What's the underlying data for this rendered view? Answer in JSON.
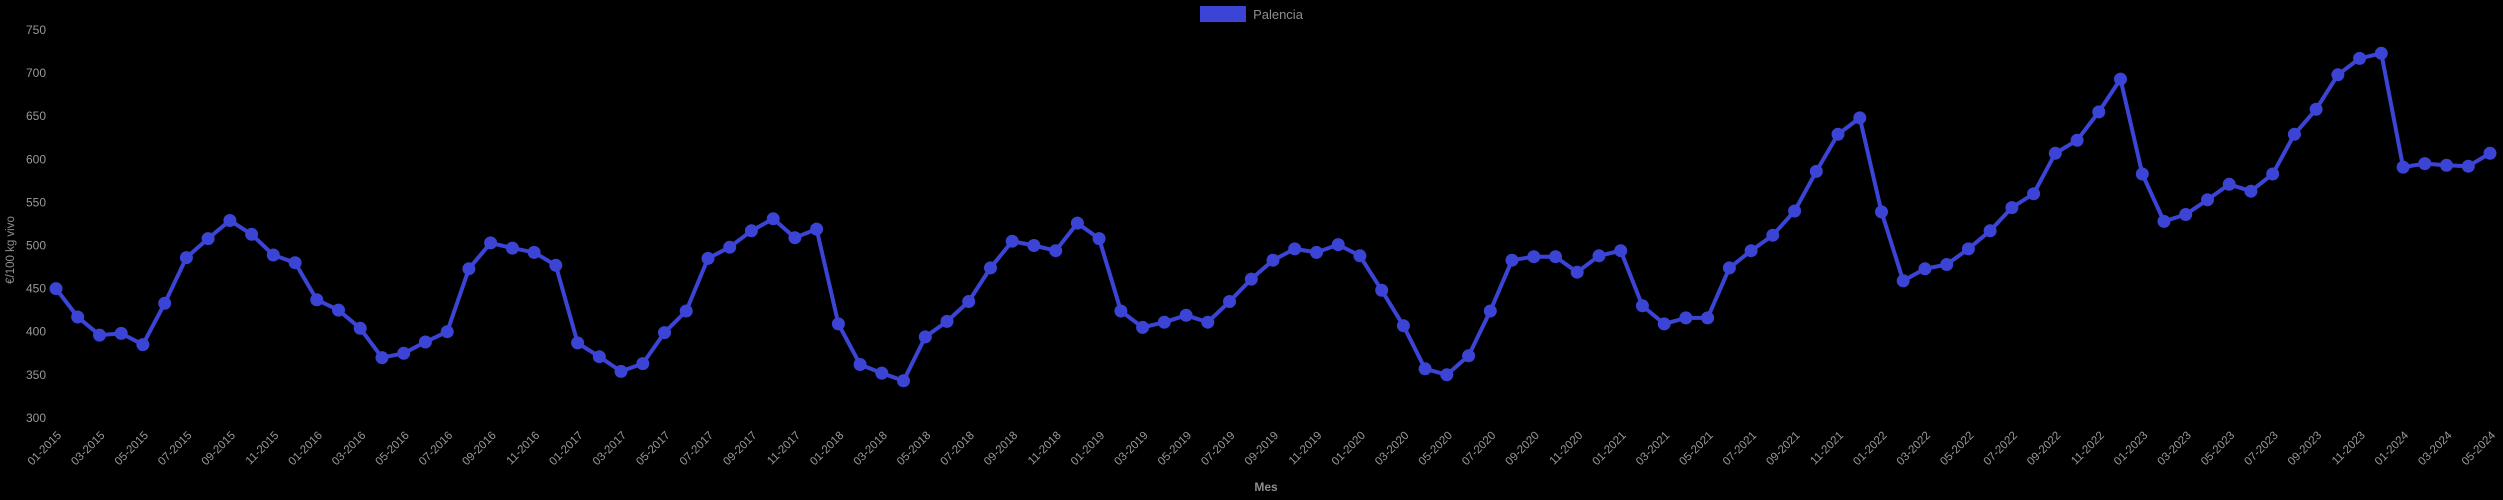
{
  "page": {
    "background": "#000000"
  },
  "legend": {
    "items": [
      {
        "label": "Palencia",
        "color": "#3c44d6"
      }
    ]
  },
  "chart_data": {
    "type": "line",
    "title": "",
    "xlabel": "Mes",
    "ylabel": "€/100 kg vivo",
    "ylim": [
      300,
      750
    ],
    "yticks": [
      300,
      350,
      400,
      450,
      500,
      550,
      600,
      650,
      700,
      750
    ],
    "grid": false,
    "legend_position": "top-center",
    "x_tick_every": 2,
    "x": [
      "01-2015",
      "02-2015",
      "03-2015",
      "04-2015",
      "05-2015",
      "06-2015",
      "07-2015",
      "08-2015",
      "09-2015",
      "10-2015",
      "11-2015",
      "12-2015",
      "01-2016",
      "02-2016",
      "03-2016",
      "04-2016",
      "05-2016",
      "06-2016",
      "07-2016",
      "08-2016",
      "09-2016",
      "10-2016",
      "11-2016",
      "12-2016",
      "01-2017",
      "02-2017",
      "03-2017",
      "04-2017",
      "05-2017",
      "06-2017",
      "07-2017",
      "08-2017",
      "09-2017",
      "10-2017",
      "11-2017",
      "12-2017",
      "01-2018",
      "02-2018",
      "03-2018",
      "04-2018",
      "05-2018",
      "06-2018",
      "07-2018",
      "08-2018",
      "09-2018",
      "10-2018",
      "11-2018",
      "12-2018",
      "01-2019",
      "02-2019",
      "03-2019",
      "04-2019",
      "05-2019",
      "06-2019",
      "07-2019",
      "08-2019",
      "09-2019",
      "10-2019",
      "11-2019",
      "12-2019",
      "01-2020",
      "02-2020",
      "03-2020",
      "04-2020",
      "05-2020",
      "06-2020",
      "07-2020",
      "08-2020",
      "09-2020",
      "10-2020",
      "11-2020",
      "12-2020",
      "01-2021",
      "02-2021",
      "03-2021",
      "04-2021",
      "05-2021",
      "06-2021",
      "07-2021",
      "08-2021",
      "09-2021",
      "10-2021",
      "11-2021",
      "12-2021",
      "01-2022",
      "02-2022",
      "03-2022",
      "04-2022",
      "05-2022",
      "06-2022",
      "07-2022",
      "08-2022",
      "09-2022",
      "10-2022",
      "11-2022",
      "12-2022",
      "01-2023",
      "02-2023",
      "03-2023",
      "04-2023",
      "05-2023",
      "06-2023",
      "07-2023",
      "08-2023",
      "09-2023",
      "10-2023",
      "11-2023",
      "12-2023",
      "01-2024",
      "02-2024",
      "03-2024",
      "04-2024",
      "05-2024"
    ],
    "series": [
      {
        "name": "Palencia",
        "color": "#3c44d6",
        "point_radius": 6.5,
        "line_width": 4,
        "values": [
          450,
          417,
          396,
          398,
          385,
          433,
          486,
          508,
          529,
          513,
          489,
          480,
          437,
          425,
          404,
          370,
          375,
          388,
          400,
          473,
          503,
          497,
          492,
          477,
          387,
          371,
          354,
          363,
          399,
          424,
          485,
          498,
          517,
          531,
          509,
          519,
          409,
          362,
          352,
          343,
          394,
          412,
          435,
          474,
          505,
          500,
          494,
          526,
          508,
          424,
          405,
          411,
          419,
          411,
          435,
          461,
          483,
          496,
          492,
          501,
          488,
          448,
          407,
          357,
          350,
          372,
          424,
          483,
          487,
          487,
          469,
          488,
          494,
          430,
          409,
          416,
          416,
          474,
          494,
          512,
          540,
          586,
          629,
          648,
          539,
          459,
          473,
          478,
          496,
          517,
          544,
          560,
          607,
          622,
          655,
          693,
          583,
          528,
          536,
          553,
          571,
          563,
          583,
          629,
          658,
          698,
          717,
          723,
          591,
          595,
          593,
          592,
          607
        ]
      }
    ]
  }
}
